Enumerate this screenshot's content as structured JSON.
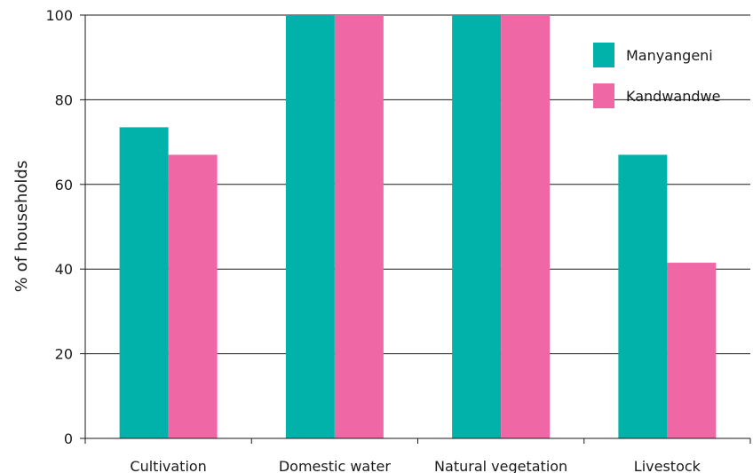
{
  "chart_data": {
    "type": "bar",
    "categories": [
      "Cultivation",
      "Domestic water",
      "Natural vegetation",
      "Livestock"
    ],
    "series": [
      {
        "name": "Manyangeni",
        "values": [
          73.5,
          100,
          100,
          67
        ],
        "color": "#00b2a9"
      },
      {
        "name": "Kandwandwe",
        "values": [
          67,
          100,
          100,
          41.5
        ],
        "color": "#f067a6"
      }
    ],
    "title": "",
    "xlabel": "",
    "ylabel": "% of households",
    "ylim": [
      0,
      100
    ],
    "yticks": [
      0,
      20,
      40,
      60,
      80,
      100
    ],
    "grid": true,
    "legend_position": "top-right"
  }
}
